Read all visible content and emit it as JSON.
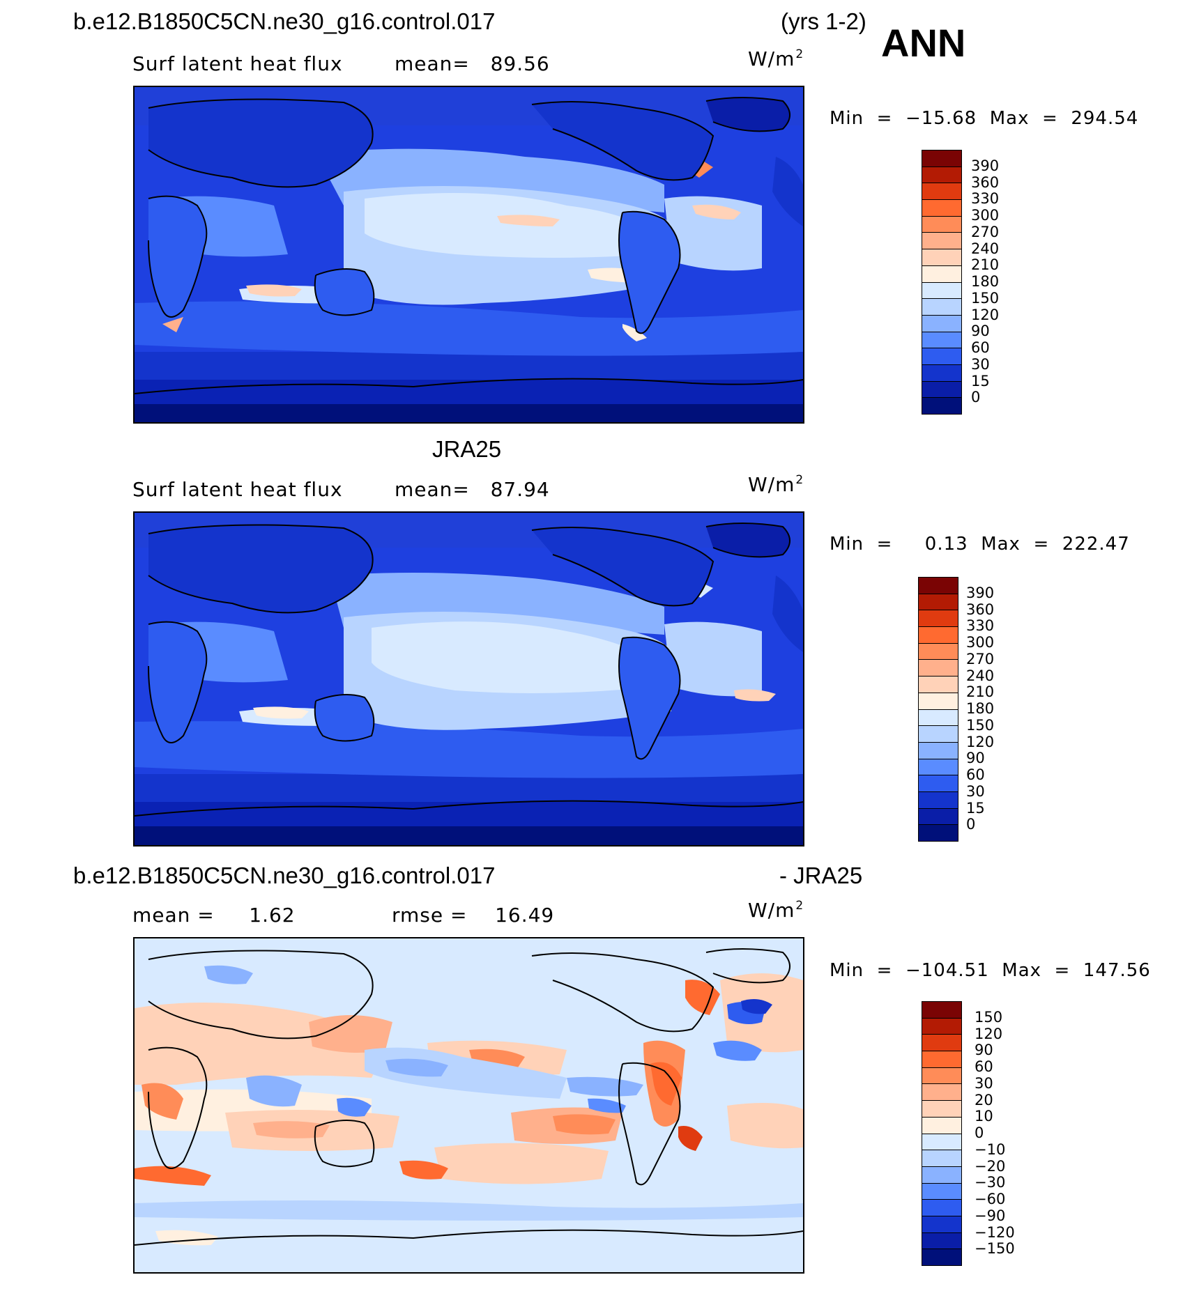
{
  "header": {
    "case_name": "b.e12.B1850C5CN.ne30_g16.control.017",
    "years": "(yrs 1-2)",
    "season": "ANN"
  },
  "panels": [
    {
      "id": "model",
      "variable": "Surf latent heat flux",
      "stat_text": "mean=   89.56",
      "units_base": "W/m",
      "units_exp": "2",
      "minmax": "Min  =  −15.68  Max  =  294.54",
      "colorbar_labels": [
        "390",
        "360",
        "330",
        "300",
        "270",
        "240",
        "210",
        "180",
        "150",
        "120",
        "90",
        "60",
        "30",
        "15",
        "0"
      ]
    },
    {
      "id": "obs",
      "title": "JRA25",
      "variable": "Surf latent heat flux",
      "stat_text": "mean=   87.94",
      "units_base": "W/m",
      "units_exp": "2",
      "minmax": "Min  =     0.13  Max  =  222.47",
      "colorbar_labels": [
        "390",
        "360",
        "330",
        "300",
        "270",
        "240",
        "210",
        "180",
        "150",
        "120",
        "90",
        "60",
        "30",
        "15",
        "0"
      ]
    },
    {
      "id": "diff",
      "title_left": "b.e12.B1850C5CN.ne30_g16.control.017",
      "title_right": "- JRA25",
      "mean_text": "mean =     1.62",
      "rmse_text": "rmse =    16.49",
      "units_base": "W/m",
      "units_exp": "2",
      "minmax": "Min  =  −104.51  Max  =  147.56",
      "colorbar_labels": [
        "150",
        "120",
        "90",
        "60",
        "30",
        "20",
        "10",
        "0",
        "−10",
        "−20",
        "−30",
        "−60",
        "−90",
        "−120",
        "−150"
      ]
    }
  ],
  "colors": {
    "abs_scale": [
      "#7a0404",
      "#b31b04",
      "#e03b10",
      "#ff6a30",
      "#ff8c58",
      "#ffb08c",
      "#ffd2b8",
      "#fff0e0",
      "#d8eaff",
      "#b8d4ff",
      "#8ab2ff",
      "#5a8cff",
      "#2e5cf0",
      "#1434cc",
      "#0a1ea8",
      "#00107a"
    ],
    "diff_scale": [
      "#7a0404",
      "#b31b04",
      "#e03b10",
      "#ff6a30",
      "#ff8c58",
      "#ffb08c",
      "#ffd2b8",
      "#fff0e0",
      "#d8eaff",
      "#b8d4ff",
      "#8ab2ff",
      "#5a8cff",
      "#2e5cf0",
      "#1434cc",
      "#0a1ea8",
      "#00107a"
    ]
  }
}
